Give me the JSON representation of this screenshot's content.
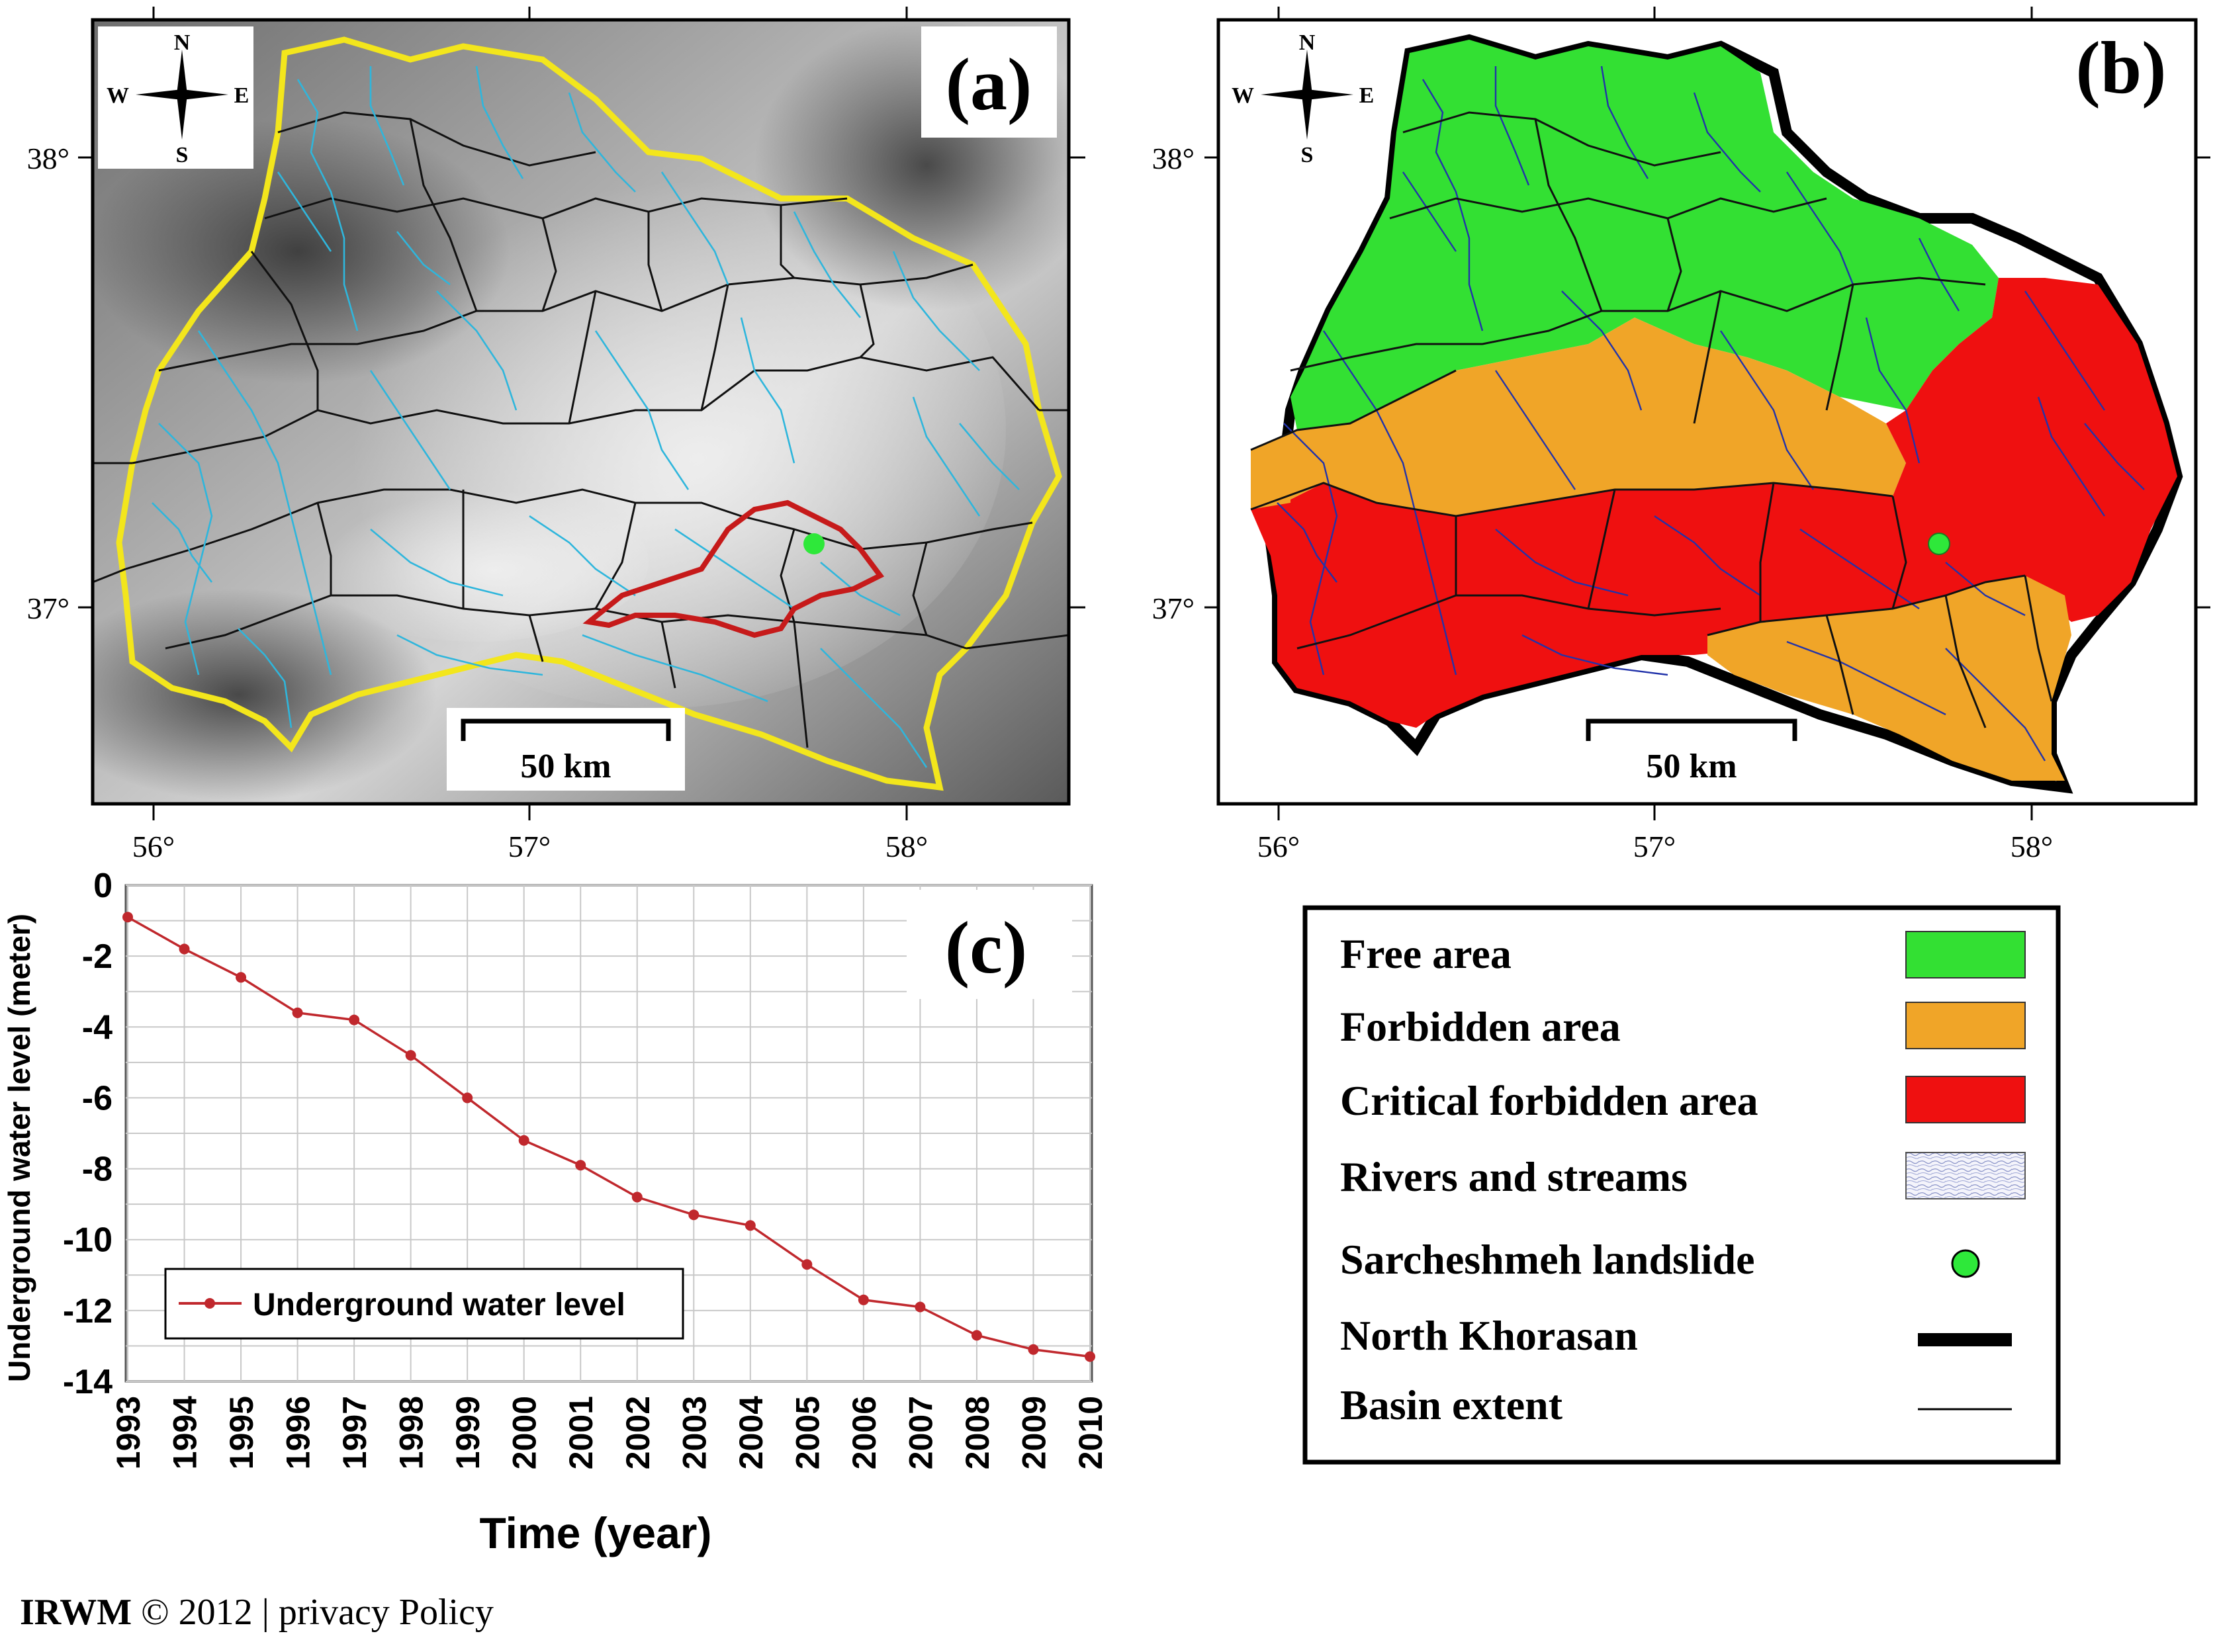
{
  "map_a": {
    "panel_label": "(a)",
    "scale_label": "50 km",
    "compass": {
      "n": "N",
      "s": "S",
      "e": "E",
      "w": "W"
    },
    "lat_labels": [
      "38°",
      "37°"
    ],
    "lon_labels": [
      "56°",
      "57°",
      "58°"
    ]
  },
  "map_b": {
    "panel_label": "(b)",
    "scale_label": "50 km",
    "compass": {
      "n": "N",
      "s": "S",
      "e": "E",
      "w": "W"
    },
    "lat_labels": [
      "38°",
      "37°"
    ],
    "lon_labels": [
      "56°",
      "57°",
      "58°"
    ],
    "colors": {
      "free": "#33e033",
      "forbidden": "#f0a528",
      "critical": "#ef1010",
      "stream": "#2233aa",
      "boundary": "#000000"
    }
  },
  "legend": {
    "items": [
      {
        "label": "Free area",
        "swatch": "#33e033"
      },
      {
        "label": "Forbidden area",
        "swatch": "#f0a528"
      },
      {
        "label": "Critical forbidden area",
        "swatch": "#ef1010"
      },
      {
        "label": "Rivers and streams",
        "swatch": "pattern"
      },
      {
        "label": "Sarcheshmeh landslide",
        "swatch": "green-dot"
      },
      {
        "label": "North Khorasan",
        "swatch": "thick-line"
      },
      {
        "label": "Basin extent",
        "swatch": "thin-line"
      }
    ]
  },
  "chart_data": {
    "type": "line",
    "panel_label": "(c)",
    "x": [
      "1993",
      "1994",
      "1995",
      "1996",
      "1997",
      "1998",
      "1999",
      "2000",
      "2001",
      "2002",
      "2003",
      "2004",
      "2005",
      "2006",
      "2007",
      "2008",
      "2009",
      "2010"
    ],
    "series": [
      {
        "name": "Underground water level",
        "values": [
          -0.9,
          -1.8,
          -2.6,
          -3.6,
          -3.8,
          -4.8,
          -6.0,
          -7.2,
          -7.9,
          -8.8,
          -9.3,
          -9.6,
          -10.7,
          -11.7,
          -11.9,
          -12.7,
          -13.1,
          -13.3
        ],
        "color": "#c0282d"
      }
    ],
    "xlabel": "Time (year)",
    "ylabel": "Underground water level (meter)",
    "ylim": [
      -14,
      0
    ],
    "yticks": [
      "0",
      "-2",
      "-4",
      "-6",
      "-8",
      "-10",
      "-12",
      "-14"
    ],
    "grid": true,
    "legend_position": "bottom-left"
  },
  "footer": {
    "brand": "IRWM",
    "text": " © 2012 | privacy Policy"
  }
}
